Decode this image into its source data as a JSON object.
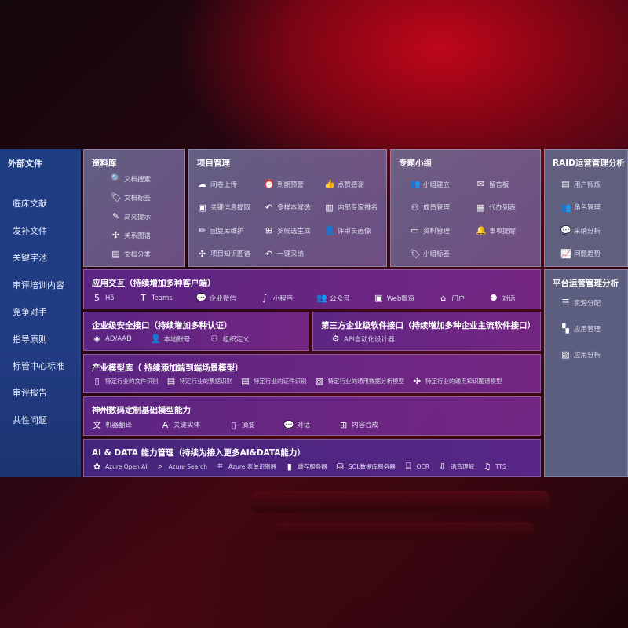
{
  "sidebar": {
    "title": "外部文件",
    "items": [
      "临床文献",
      "发补文件",
      "关键字池",
      "审评培训内容",
      "竞争对手",
      "指导原则",
      "标管中心标准",
      "审评报告",
      "共性问题"
    ]
  },
  "library": {
    "title": "资料库",
    "items": [
      {
        "icon": "document-search-icon",
        "label": "文档搜索"
      },
      {
        "icon": "tag-icon",
        "label": "文档标签"
      },
      {
        "icon": "pen-icon",
        "label": "高亮提示"
      },
      {
        "icon": "graph-icon",
        "label": "关系图谱"
      },
      {
        "icon": "document-list-icon",
        "label": "文档分类"
      }
    ]
  },
  "project": {
    "title": "项目管理",
    "items": [
      {
        "icon": "cloud-upload-icon",
        "label": "问卷上传"
      },
      {
        "icon": "alarm-icon",
        "label": "到期预警"
      },
      {
        "icon": "thumbs-up-icon",
        "label": "点赞感谢"
      },
      {
        "icon": "window-icon",
        "label": "关键信息提取"
      },
      {
        "icon": "reply-icon",
        "label": "多样本候选"
      },
      {
        "icon": "ranking-icon",
        "label": "内部专家排名"
      },
      {
        "icon": "edit-icon",
        "label": "回复库维护"
      },
      {
        "icon": "puzzle-icon",
        "label": "多候选生成"
      },
      {
        "icon": "user-icon",
        "label": "评审员画像"
      },
      {
        "icon": "graph-icon",
        "label": "项目知识图谱"
      },
      {
        "icon": "reply-icon",
        "label": "一键采纳"
      }
    ]
  },
  "group": {
    "title": "专题小组",
    "items": [
      {
        "icon": "users-icon",
        "label": "小组建立"
      },
      {
        "icon": "bbs-icon",
        "label": "留言板"
      },
      {
        "icon": "user-add-icon",
        "label": "成员管理"
      },
      {
        "icon": "clipboard-icon",
        "label": "代办列表"
      },
      {
        "icon": "folder-icon",
        "label": "资料管理"
      },
      {
        "icon": "bell-icon",
        "label": "事项提醒"
      },
      {
        "icon": "tag-icon",
        "label": "小组标签"
      }
    ]
  },
  "raid": {
    "title": "RAID运营管理分析",
    "items": [
      {
        "icon": "id-card-icon",
        "label": "用户锻炼"
      },
      {
        "icon": "users-icon",
        "label": "角色管理"
      },
      {
        "icon": "qa-icon",
        "label": "采纳分析"
      },
      {
        "icon": "trend-icon",
        "label": "问题趋势"
      }
    ]
  },
  "platform": {
    "title": "平台运营管理分析",
    "items": [
      {
        "icon": "checklist-icon",
        "label": "资源分配"
      },
      {
        "icon": "apps-icon",
        "label": "应用管理"
      },
      {
        "icon": "chart-icon",
        "label": "应用分析"
      }
    ]
  },
  "app_interaction": {
    "title": "应用交互（持续增加多种客户端）",
    "items": [
      {
        "icon": "html5-icon",
        "label": "H5"
      },
      {
        "icon": "teams-icon",
        "label": "Teams"
      },
      {
        "icon": "wechat-work-icon",
        "label": "企业微信"
      },
      {
        "icon": "mini-program-icon",
        "label": "小程序"
      },
      {
        "icon": "users-icon",
        "label": "公众号"
      },
      {
        "icon": "window-icon",
        "label": "Web飘窗"
      },
      {
        "icon": "portal-icon",
        "label": "门户"
      },
      {
        "icon": "chat-users-icon",
        "label": "对话"
      }
    ]
  },
  "security": {
    "title": "企业级安全接口（持续增加多种认证）",
    "items": [
      {
        "icon": "azure-ad-icon",
        "label": "AD/AAD"
      },
      {
        "icon": "user-icon",
        "label": "本地账号"
      },
      {
        "icon": "org-icon",
        "label": "组织定义"
      }
    ]
  },
  "third_party": {
    "title": "第三方企业级软件接口（持续增加多种企业主流软件接口）",
    "items": [
      {
        "icon": "gear-icon",
        "label": "API自动化设计器"
      }
    ]
  },
  "industry": {
    "title": "产业模型库（ 持续添加端到端场景模型）",
    "items": [
      {
        "icon": "file-icon",
        "label": "特定行业的文件识别"
      },
      {
        "icon": "receipt-icon",
        "label": "特定行业的票据识别"
      },
      {
        "icon": "id-card-icon",
        "label": "特定行业的证件识别"
      },
      {
        "icon": "image-icon",
        "label": "特定行业的通用数据分析模型"
      },
      {
        "icon": "graph-icon",
        "label": "特定行业的通用知识图谱模型"
      }
    ]
  },
  "base_model": {
    "title": "神州数码定制基础模型能力",
    "items": [
      {
        "icon": "translate-icon",
        "label": "机器翻译"
      },
      {
        "icon": "entity-icon",
        "label": "关键实体"
      },
      {
        "icon": "summary-icon",
        "label": "摘要"
      },
      {
        "icon": "chat-icon",
        "label": "对话"
      },
      {
        "icon": "compose-icon",
        "label": "内容合成"
      }
    ]
  },
  "ai_data": {
    "title": "AI & DATA 能力管理（持续为接入更多AI&DATA能力）",
    "items": [
      {
        "icon": "openai-icon",
        "label": "Azure Open AI"
      },
      {
        "icon": "search-icon",
        "label": "Azure Search"
      },
      {
        "icon": "form-icon",
        "label": "Azure 表单识别器"
      },
      {
        "icon": "cache-icon",
        "label": "缓存服务器"
      },
      {
        "icon": "database-icon",
        "label": "SQL数据库服务器"
      },
      {
        "icon": "ocr-icon",
        "label": "OCR"
      },
      {
        "icon": "speech-icon",
        "label": "语音理解"
      },
      {
        "icon": "tts-icon",
        "label": "TTS"
      }
    ]
  }
}
